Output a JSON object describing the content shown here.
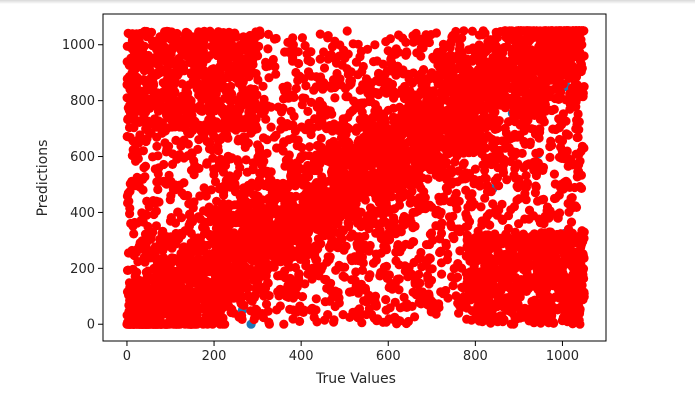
{
  "chart_data": {
    "type": "scatter",
    "title": "",
    "xlabel": "True Values",
    "ylabel": "Predictions",
    "xlim": [
      -55,
      1100
    ],
    "ylim": [
      -60,
      1110
    ],
    "xticks": [
      0,
      200,
      400,
      600,
      800,
      1000
    ],
    "yticks": [
      0,
      200,
      400,
      600,
      800,
      1000
    ],
    "grid": false,
    "legend": "none",
    "series": [
      {
        "color": "#1f77b4",
        "marker": "circle",
        "points": [
          [
            285,
            0
          ],
          [
            265,
            50
          ],
          [
            220,
            100
          ],
          [
            1005,
            325
          ],
          [
            945,
            610
          ],
          [
            885,
            755
          ],
          [
            840,
            485
          ],
          [
            905,
            780
          ],
          [
            1010,
            850
          ],
          [
            970,
            975
          ],
          [
            330,
            300
          ],
          [
            180,
            230
          ]
        ]
      },
      {
        "color": "#ff0000",
        "marker": "circle",
        "description_of_distribution": {
          "diagonal_band": {
            "range": [
              0,
              1050
            ],
            "spread": 110,
            "count": 2600
          },
          "uniform_cloud": {
            "x_range": [
              0,
              1050
            ],
            "y_range": [
              0,
              1050
            ],
            "count": 2300
          },
          "top_left_cluster": {
            "x_range": [
              0,
              300
            ],
            "y_range": [
              700,
              1050
            ],
            "count": 500
          },
          "bottom_right_cluster": {
            "x_range": [
              780,
              1050
            ],
            "y_range": [
              0,
              330
            ],
            "count": 500
          }
        },
        "sample_points": [
          [
            0,
            0
          ],
          [
            50,
            60
          ],
          [
            100,
            95
          ],
          [
            200,
            210
          ],
          [
            300,
            290
          ],
          [
            400,
            410
          ],
          [
            500,
            495
          ],
          [
            600,
            605
          ],
          [
            700,
            690
          ],
          [
            800,
            810
          ],
          [
            900,
            905
          ],
          [
            1000,
            1010
          ],
          [
            1040,
            1040
          ],
          [
            30,
            1040
          ],
          [
            150,
            950
          ],
          [
            250,
            880
          ],
          [
            90,
            780
          ],
          [
            950,
            150
          ],
          [
            1000,
            60
          ],
          [
            870,
            250
          ],
          [
            1040,
            0
          ],
          [
            400,
            600
          ],
          [
            600,
            300
          ],
          [
            700,
            900
          ]
        ]
      }
    ]
  }
}
